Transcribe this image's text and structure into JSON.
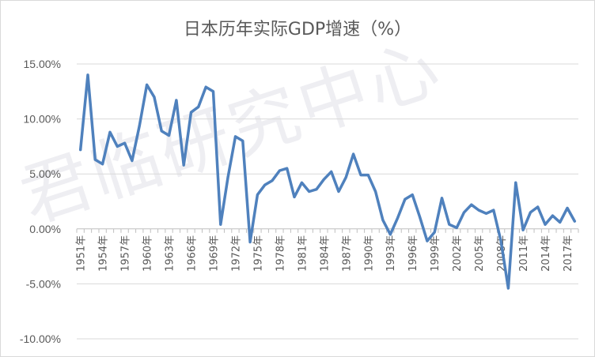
{
  "chart_data": {
    "type": "line",
    "title": "日本历年实际GDP增速（%）",
    "watermark": "君临研究中心",
    "ylim": [
      -10,
      15
    ],
    "y_ticks": [
      15,
      10,
      5,
      0,
      -5,
      -10
    ],
    "y_tick_labels": [
      "15.00%",
      "10.00%",
      "5.00%",
      "0.00%",
      "-5.00%",
      "-10.00%"
    ],
    "x": [
      1951,
      1952,
      1953,
      1954,
      1955,
      1956,
      1957,
      1958,
      1959,
      1960,
      1961,
      1962,
      1963,
      1964,
      1965,
      1966,
      1967,
      1968,
      1969,
      1970,
      1971,
      1972,
      1973,
      1974,
      1975,
      1976,
      1977,
      1978,
      1979,
      1980,
      1981,
      1982,
      1983,
      1984,
      1985,
      1986,
      1987,
      1988,
      1989,
      1990,
      1991,
      1992,
      1993,
      1994,
      1995,
      1996,
      1997,
      1998,
      1999,
      2000,
      2001,
      2002,
      2003,
      2004,
      2005,
      2006,
      2007,
      2008,
      2009,
      2010,
      2011,
      2012,
      2013,
      2014,
      2015,
      2016,
      2017,
      2018
    ],
    "x_tick_labels": [
      "1951年",
      "1954年",
      "1957年",
      "1960年",
      "1963年",
      "1966年",
      "1969年",
      "1972年",
      "1975年",
      "1978年",
      "1981年",
      "1984年",
      "1987年",
      "1990年",
      "1993年",
      "1996年",
      "1999年",
      "2002年",
      "2005年",
      "2008年",
      "2011年",
      "2014年",
      "2017年"
    ],
    "series": [
      {
        "color": "#4f81bd",
        "values": [
          7.2,
          14.0,
          6.3,
          5.9,
          8.8,
          7.5,
          7.8,
          6.2,
          9.4,
          13.1,
          12.0,
          8.9,
          8.5,
          11.7,
          5.8,
          10.6,
          11.1,
          12.9,
          12.5,
          0.4,
          4.7,
          8.4,
          8.0,
          -1.2,
          3.1,
          4.0,
          4.4,
          5.3,
          5.5,
          2.9,
          4.2,
          3.4,
          3.6,
          4.5,
          5.2,
          3.4,
          4.7,
          6.8,
          4.9,
          4.9,
          3.4,
          0.8,
          -0.5,
          1.0,
          2.7,
          3.1,
          1.1,
          -1.1,
          -0.3,
          2.8,
          0.4,
          0.1,
          1.5,
          2.2,
          1.7,
          1.4,
          1.7,
          -1.1,
          -5.4,
          4.2,
          -0.1,
          1.5,
          2.0,
          0.4,
          1.2,
          0.6,
          1.9,
          0.7
        ]
      }
    ]
  }
}
